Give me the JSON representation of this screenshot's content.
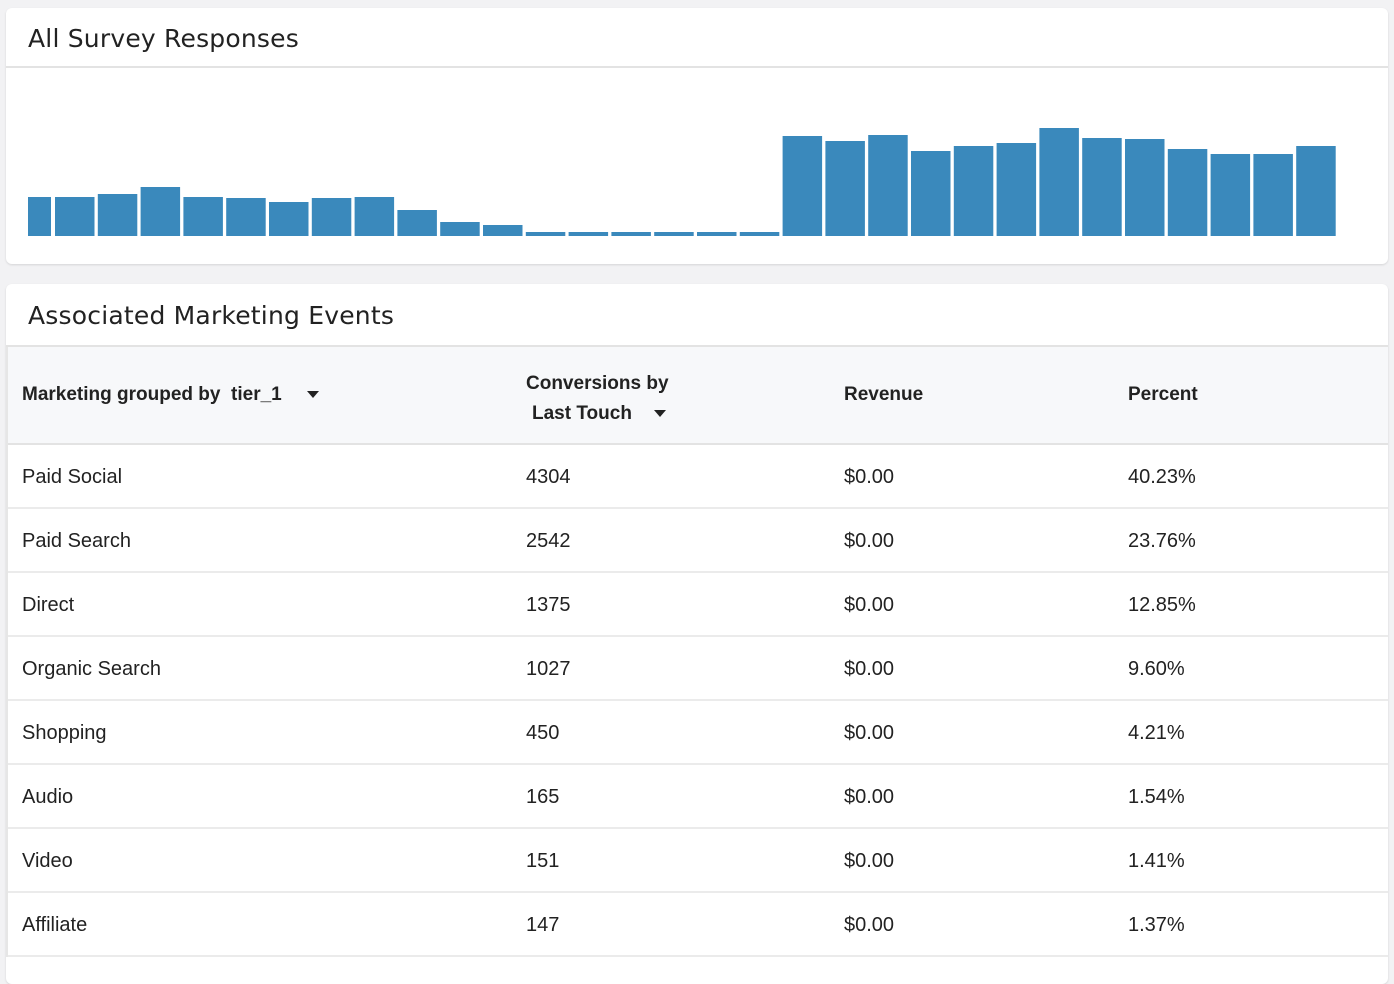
{
  "survey_card": {
    "title": "All Survey Responses"
  },
  "chart_data": {
    "type": "bar",
    "title": "All Survey Responses",
    "xlabel": "",
    "ylabel": "",
    "grid": false,
    "color": "#3a89bc",
    "values": [
      39,
      39,
      42,
      49,
      39,
      38,
      34,
      38,
      39,
      26,
      14,
      11,
      4,
      4,
      4,
      4,
      4,
      4,
      100,
      95,
      101,
      85,
      90,
      93,
      108,
      98,
      97,
      87,
      82,
      82,
      90
    ],
    "ylim": [
      0,
      150
    ]
  },
  "events_card": {
    "title": "Associated Marketing Events",
    "columns": {
      "group_prefix": "Marketing grouped by",
      "group_value": "tier_1",
      "conversions_line1": "Conversions by",
      "conversions_line2": "Last Touch",
      "revenue": "Revenue",
      "percent": "Percent"
    },
    "rows": [
      {
        "name": "Paid Social",
        "conversions": "4304",
        "revenue": "$0.00",
        "percent": "40.23%"
      },
      {
        "name": "Paid Search",
        "conversions": "2542",
        "revenue": "$0.00",
        "percent": "23.76%"
      },
      {
        "name": "Direct",
        "conversions": "1375",
        "revenue": "$0.00",
        "percent": "12.85%"
      },
      {
        "name": "Organic Search",
        "conversions": "1027",
        "revenue": "$0.00",
        "percent": "9.60%"
      },
      {
        "name": "Shopping",
        "conversions": "450",
        "revenue": "$0.00",
        "percent": "4.21%"
      },
      {
        "name": "Audio",
        "conversions": "165",
        "revenue": "$0.00",
        "percent": "1.54%"
      },
      {
        "name": "Video",
        "conversions": "151",
        "revenue": "$0.00",
        "percent": "1.41%"
      },
      {
        "name": "Affiliate",
        "conversions": "147",
        "revenue": "$0.00",
        "percent": "1.37%"
      }
    ]
  }
}
